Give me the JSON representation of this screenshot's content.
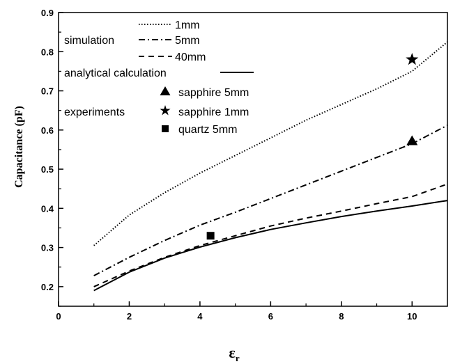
{
  "chart_data": {
    "type": "line",
    "xlabel": "ε",
    "xlabel_subscript": "r",
    "ylabel": "Capacitance (pF)",
    "xlim": [
      0,
      11
    ],
    "ylim": [
      0.15,
      0.9
    ],
    "x_ticks": [
      0,
      2,
      4,
      6,
      8,
      10
    ],
    "y_ticks": [
      0.2,
      0.3,
      0.4,
      0.5,
      0.6,
      0.7,
      0.8,
      0.9
    ],
    "x_tick_labels": [
      "0",
      "2",
      "4",
      "6",
      "8",
      "10"
    ],
    "y_tick_labels": [
      "0.2",
      "0.3",
      "0.4",
      "0.5",
      "0.6",
      "0.7",
      "0.8",
      "0.9"
    ],
    "grid": false,
    "legend_position": "top-left",
    "legend_groups": {
      "simulation": "simulation",
      "analytical": "analytical calculation",
      "experiments": "experiments"
    },
    "series": [
      {
        "name": "1mm",
        "group": "simulation",
        "style": "dotted",
        "x": [
          1,
          2,
          3,
          4,
          5,
          6,
          7,
          8,
          9,
          10,
          11
        ],
        "y": [
          0.305,
          0.383,
          0.44,
          0.49,
          0.535,
          0.58,
          0.625,
          0.665,
          0.705,
          0.75,
          0.825
        ]
      },
      {
        "name": "5mm",
        "group": "simulation",
        "style": "dashdot",
        "x": [
          1,
          2,
          3,
          4,
          5,
          6,
          7,
          8,
          9,
          10,
          11
        ],
        "y": [
          0.228,
          0.275,
          0.318,
          0.357,
          0.39,
          0.425,
          0.46,
          0.495,
          0.53,
          0.565,
          0.612
        ]
      },
      {
        "name": "40mm",
        "group": "simulation",
        "style": "dashed",
        "x": [
          1,
          2,
          3,
          4,
          5,
          6,
          7,
          8,
          9,
          10,
          11
        ],
        "y": [
          0.2,
          0.24,
          0.275,
          0.305,
          0.33,
          0.355,
          0.375,
          0.393,
          0.412,
          0.43,
          0.462
        ]
      },
      {
        "name": "analytical calculation",
        "group": "analytical",
        "style": "solid",
        "x": [
          1,
          2,
          3,
          4,
          5,
          6,
          7,
          8,
          9,
          10,
          11
        ],
        "y": [
          0.19,
          0.237,
          0.273,
          0.301,
          0.325,
          0.346,
          0.363,
          0.379,
          0.393,
          0.406,
          0.42
        ]
      }
    ],
    "points": [
      {
        "name": "sapphire 5mm",
        "group": "experiments",
        "marker": "triangle",
        "x": 10,
        "y": 0.572
      },
      {
        "name": "sapphire 1mm",
        "group": "experiments",
        "marker": "star",
        "x": 10,
        "y": 0.78
      },
      {
        "name": "quartz 5mm",
        "group": "experiments",
        "marker": "square",
        "x": 4.3,
        "y": 0.33
      }
    ]
  }
}
